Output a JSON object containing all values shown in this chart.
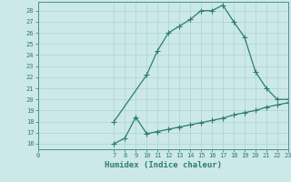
{
  "xlabel": "Humidex (Indice chaleur)",
  "ylabel": "",
  "bg_color": "#cce8e8",
  "line_color": "#2e7d6e",
  "grid_color": "#aad4d4",
  "xlim": [
    0,
    23
  ],
  "ylim": [
    15.5,
    28.8
  ],
  "yticks": [
    16,
    17,
    18,
    19,
    20,
    21,
    22,
    23,
    24,
    25,
    26,
    27,
    28
  ],
  "xticks": [
    0,
    7,
    8,
    9,
    10,
    11,
    12,
    13,
    14,
    15,
    16,
    17,
    18,
    19,
    20,
    21,
    22,
    23
  ],
  "curve1_x": [
    7,
    10,
    11,
    12,
    13,
    14,
    15,
    16,
    17,
    18,
    19,
    20,
    21,
    22,
    23
  ],
  "curve1_y": [
    18.0,
    22.2,
    24.4,
    26.0,
    26.6,
    27.2,
    28.0,
    28.0,
    28.5,
    27.0,
    25.6,
    22.5,
    21.0,
    20.0,
    20.0
  ],
  "curve2_x": [
    7,
    8,
    9,
    10,
    11,
    12,
    13,
    14,
    15,
    16,
    17,
    18,
    19,
    20,
    21,
    22,
    23
  ],
  "curve2_y": [
    16.0,
    16.5,
    18.4,
    16.9,
    17.1,
    17.3,
    17.5,
    17.7,
    17.9,
    18.1,
    18.3,
    18.6,
    18.8,
    19.0,
    19.3,
    19.5,
    19.7
  ],
  "marker": "+",
  "markersize": 4,
  "markeredgewidth": 0.8,
  "linewidth": 0.9,
  "xlabel_fontsize": 6.5,
  "tick_fontsize": 5.0,
  "spine_color": "#4a9090"
}
